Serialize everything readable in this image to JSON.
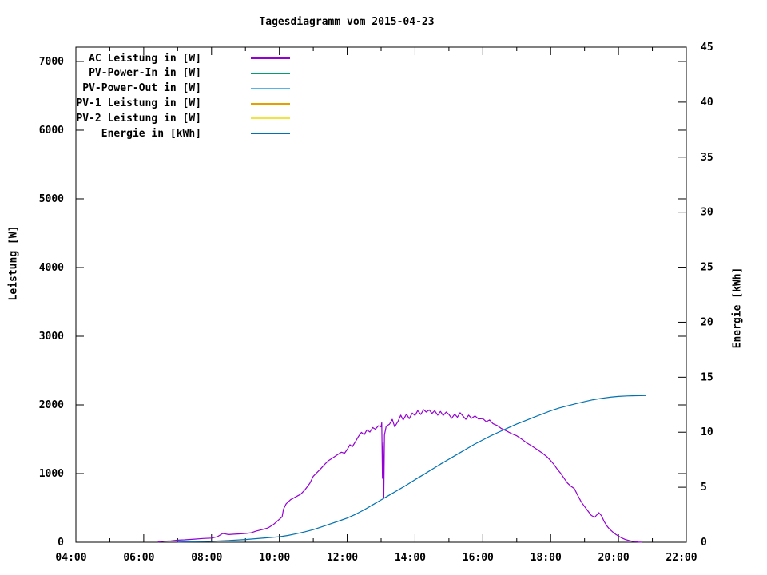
{
  "title": "Tagesdiagramm vom 2015-04-23",
  "background_color": "#ffffff",
  "axes": {
    "y_left": {
      "label": "Leistung [W]",
      "ticks": [
        0,
        1000,
        2000,
        3000,
        4000,
        5000,
        6000,
        7000
      ]
    },
    "y_right": {
      "label": "Energie [kWh]",
      "ticks": [
        0,
        5,
        10,
        15,
        20,
        25,
        30,
        35,
        40,
        45
      ]
    },
    "x": {
      "major_hours": [
        4,
        6,
        8,
        10,
        12,
        14,
        16,
        18,
        20,
        22
      ],
      "minor_hours": [
        5,
        7,
        9,
        11,
        13,
        15,
        17,
        19,
        21
      ],
      "tick_labels": [
        "04:00",
        "06:00",
        "08:00",
        "10:00",
        "12:00",
        "14:00",
        "16:00",
        "18:00",
        "20:00",
        "22:00"
      ]
    }
  },
  "legend": {
    "items": [
      {
        "label": "AC Leistung in [W]"
      },
      {
        "label": "PV-Power-In in [W]"
      },
      {
        "label": "PV-Power-Out in [W]"
      },
      {
        "label": "PV-1 Leistung in [W]"
      },
      {
        "label": "PV-2 Leistung in [W]"
      },
      {
        "label": "Energie in [kWh]"
      }
    ]
  },
  "chart_data": {
    "type": "line",
    "title": "Tagesdiagramm vom 2015-04-23",
    "x_unit": "hour_of_day",
    "x_range": [
      4,
      22
    ],
    "y_left_range": [
      0,
      7209
    ],
    "y_right_range": [
      0,
      45
    ],
    "grid": false,
    "legend_position": "top-left-inside",
    "series": [
      {
        "name": "AC Leistung in [W]",
        "color": "#9400d3",
        "y_axis": "left",
        "points": [
          [
            6.42,
            5
          ],
          [
            6.6,
            15
          ],
          [
            6.8,
            20
          ],
          [
            7.0,
            30
          ],
          [
            7.2,
            35
          ],
          [
            7.5,
            45
          ],
          [
            7.75,
            55
          ],
          [
            8.0,
            60
          ],
          [
            8.17,
            80
          ],
          [
            8.33,
            128
          ],
          [
            8.42,
            120
          ],
          [
            8.5,
            112
          ],
          [
            8.67,
            118
          ],
          [
            8.83,
            122
          ],
          [
            9.0,
            128
          ],
          [
            9.17,
            138
          ],
          [
            9.33,
            165
          ],
          [
            9.5,
            185
          ],
          [
            9.67,
            210
          ],
          [
            9.83,
            260
          ],
          [
            10.0,
            335
          ],
          [
            10.08,
            370
          ],
          [
            10.12,
            480
          ],
          [
            10.2,
            560
          ],
          [
            10.33,
            620
          ],
          [
            10.5,
            665
          ],
          [
            10.63,
            700
          ],
          [
            10.75,
            760
          ],
          [
            10.9,
            860
          ],
          [
            11.0,
            960
          ],
          [
            11.1,
            1010
          ],
          [
            11.2,
            1060
          ],
          [
            11.33,
            1130
          ],
          [
            11.45,
            1190
          ],
          [
            11.58,
            1230
          ],
          [
            11.7,
            1270
          ],
          [
            11.83,
            1310
          ],
          [
            11.92,
            1295
          ],
          [
            12.0,
            1350
          ],
          [
            12.08,
            1420
          ],
          [
            12.15,
            1390
          ],
          [
            12.25,
            1470
          ],
          [
            12.33,
            1540
          ],
          [
            12.42,
            1600
          ],
          [
            12.5,
            1565
          ],
          [
            12.58,
            1635
          ],
          [
            12.67,
            1605
          ],
          [
            12.75,
            1670
          ],
          [
            12.83,
            1645
          ],
          [
            12.92,
            1695
          ],
          [
            13.0,
            1680
          ],
          [
            13.02,
            1740
          ],
          [
            13.04,
            930
          ],
          [
            13.06,
            1450
          ],
          [
            13.08,
            655
          ],
          [
            13.1,
            1560
          ],
          [
            13.15,
            1690
          ],
          [
            13.25,
            1720
          ],
          [
            13.33,
            1790
          ],
          [
            13.4,
            1680
          ],
          [
            13.5,
            1760
          ],
          [
            13.58,
            1850
          ],
          [
            13.65,
            1780
          ],
          [
            13.75,
            1865
          ],
          [
            13.83,
            1800
          ],
          [
            13.92,
            1880
          ],
          [
            14.0,
            1845
          ],
          [
            14.08,
            1915
          ],
          [
            14.17,
            1860
          ],
          [
            14.25,
            1930
          ],
          [
            14.33,
            1895
          ],
          [
            14.42,
            1925
          ],
          [
            14.5,
            1875
          ],
          [
            14.58,
            1915
          ],
          [
            14.67,
            1850
          ],
          [
            14.75,
            1905
          ],
          [
            14.83,
            1845
          ],
          [
            14.92,
            1895
          ],
          [
            15.0,
            1860
          ],
          [
            15.08,
            1805
          ],
          [
            15.17,
            1865
          ],
          [
            15.25,
            1820
          ],
          [
            15.33,
            1885
          ],
          [
            15.42,
            1835
          ],
          [
            15.5,
            1790
          ],
          [
            15.58,
            1850
          ],
          [
            15.67,
            1805
          ],
          [
            15.77,
            1840
          ],
          [
            15.87,
            1795
          ],
          [
            16.0,
            1800
          ],
          [
            16.1,
            1755
          ],
          [
            16.2,
            1780
          ],
          [
            16.3,
            1725
          ],
          [
            16.42,
            1700
          ],
          [
            16.55,
            1655
          ],
          [
            16.7,
            1620
          ],
          [
            16.85,
            1580
          ],
          [
            17.0,
            1550
          ],
          [
            17.15,
            1500
          ],
          [
            17.3,
            1445
          ],
          [
            17.45,
            1400
          ],
          [
            17.6,
            1350
          ],
          [
            17.75,
            1300
          ],
          [
            17.9,
            1240
          ],
          [
            18.0,
            1190
          ],
          [
            18.1,
            1130
          ],
          [
            18.2,
            1060
          ],
          [
            18.3,
            1000
          ],
          [
            18.42,
            915
          ],
          [
            18.5,
            860
          ],
          [
            18.6,
            815
          ],
          [
            18.7,
            780
          ],
          [
            18.8,
            680
          ],
          [
            18.9,
            590
          ],
          [
            19.0,
            520
          ],
          [
            19.1,
            455
          ],
          [
            19.2,
            390
          ],
          [
            19.3,
            365
          ],
          [
            19.42,
            430
          ],
          [
            19.5,
            385
          ],
          [
            19.58,
            300
          ],
          [
            19.67,
            230
          ],
          [
            19.75,
            185
          ],
          [
            19.83,
            150
          ],
          [
            19.92,
            115
          ],
          [
            20.0,
            90
          ],
          [
            20.1,
            62
          ],
          [
            20.2,
            40
          ],
          [
            20.33,
            22
          ],
          [
            20.45,
            10
          ],
          [
            20.58,
            3
          ],
          [
            20.7,
            0
          ]
        ]
      },
      {
        "name": "PV-Power-In in [W]",
        "color": "#009e73",
        "y_axis": "left",
        "points": []
      },
      {
        "name": "PV-Power-Out in [W]",
        "color": "#56b4e9",
        "y_axis": "left",
        "points": []
      },
      {
        "name": "PV-1 Leistung in [W]",
        "color": "#e69f00",
        "y_axis": "left",
        "points": []
      },
      {
        "name": "PV-2 Leistung in [W]",
        "color": "#f0e442",
        "y_axis": "left",
        "points": []
      },
      {
        "name": "Energie in [kWh]",
        "color": "#0072b2",
        "y_axis": "right",
        "points": [
          [
            7.0,
            0.02
          ],
          [
            7.5,
            0.04
          ],
          [
            7.75,
            0.06
          ],
          [
            8.0,
            0.09
          ],
          [
            8.5,
            0.16
          ],
          [
            9.0,
            0.25
          ],
          [
            9.5,
            0.37
          ],
          [
            10.0,
            0.5
          ],
          [
            10.25,
            0.62
          ],
          [
            10.5,
            0.78
          ],
          [
            10.75,
            0.95
          ],
          [
            11.0,
            1.15
          ],
          [
            11.25,
            1.4
          ],
          [
            11.5,
            1.66
          ],
          [
            11.75,
            1.92
          ],
          [
            12.0,
            2.2
          ],
          [
            12.25,
            2.55
          ],
          [
            12.5,
            2.95
          ],
          [
            12.75,
            3.4
          ],
          [
            13.0,
            3.85
          ],
          [
            13.25,
            4.3
          ],
          [
            13.5,
            4.75
          ],
          [
            13.75,
            5.2
          ],
          [
            14.0,
            5.68
          ],
          [
            14.25,
            6.15
          ],
          [
            14.5,
            6.62
          ],
          [
            14.75,
            7.1
          ],
          [
            15.0,
            7.55
          ],
          [
            15.25,
            8.0
          ],
          [
            15.5,
            8.45
          ],
          [
            15.75,
            8.9
          ],
          [
            16.0,
            9.3
          ],
          [
            16.25,
            9.7
          ],
          [
            16.5,
            10.05
          ],
          [
            16.75,
            10.4
          ],
          [
            17.0,
            10.75
          ],
          [
            17.25,
            11.05
          ],
          [
            17.5,
            11.35
          ],
          [
            17.75,
            11.65
          ],
          [
            18.0,
            11.95
          ],
          [
            18.25,
            12.2
          ],
          [
            18.5,
            12.4
          ],
          [
            18.75,
            12.6
          ],
          [
            19.0,
            12.78
          ],
          [
            19.25,
            12.95
          ],
          [
            19.5,
            13.08
          ],
          [
            19.75,
            13.18
          ],
          [
            20.0,
            13.25
          ],
          [
            20.25,
            13.3
          ],
          [
            20.5,
            13.32
          ],
          [
            20.8,
            13.33
          ]
        ]
      }
    ]
  }
}
